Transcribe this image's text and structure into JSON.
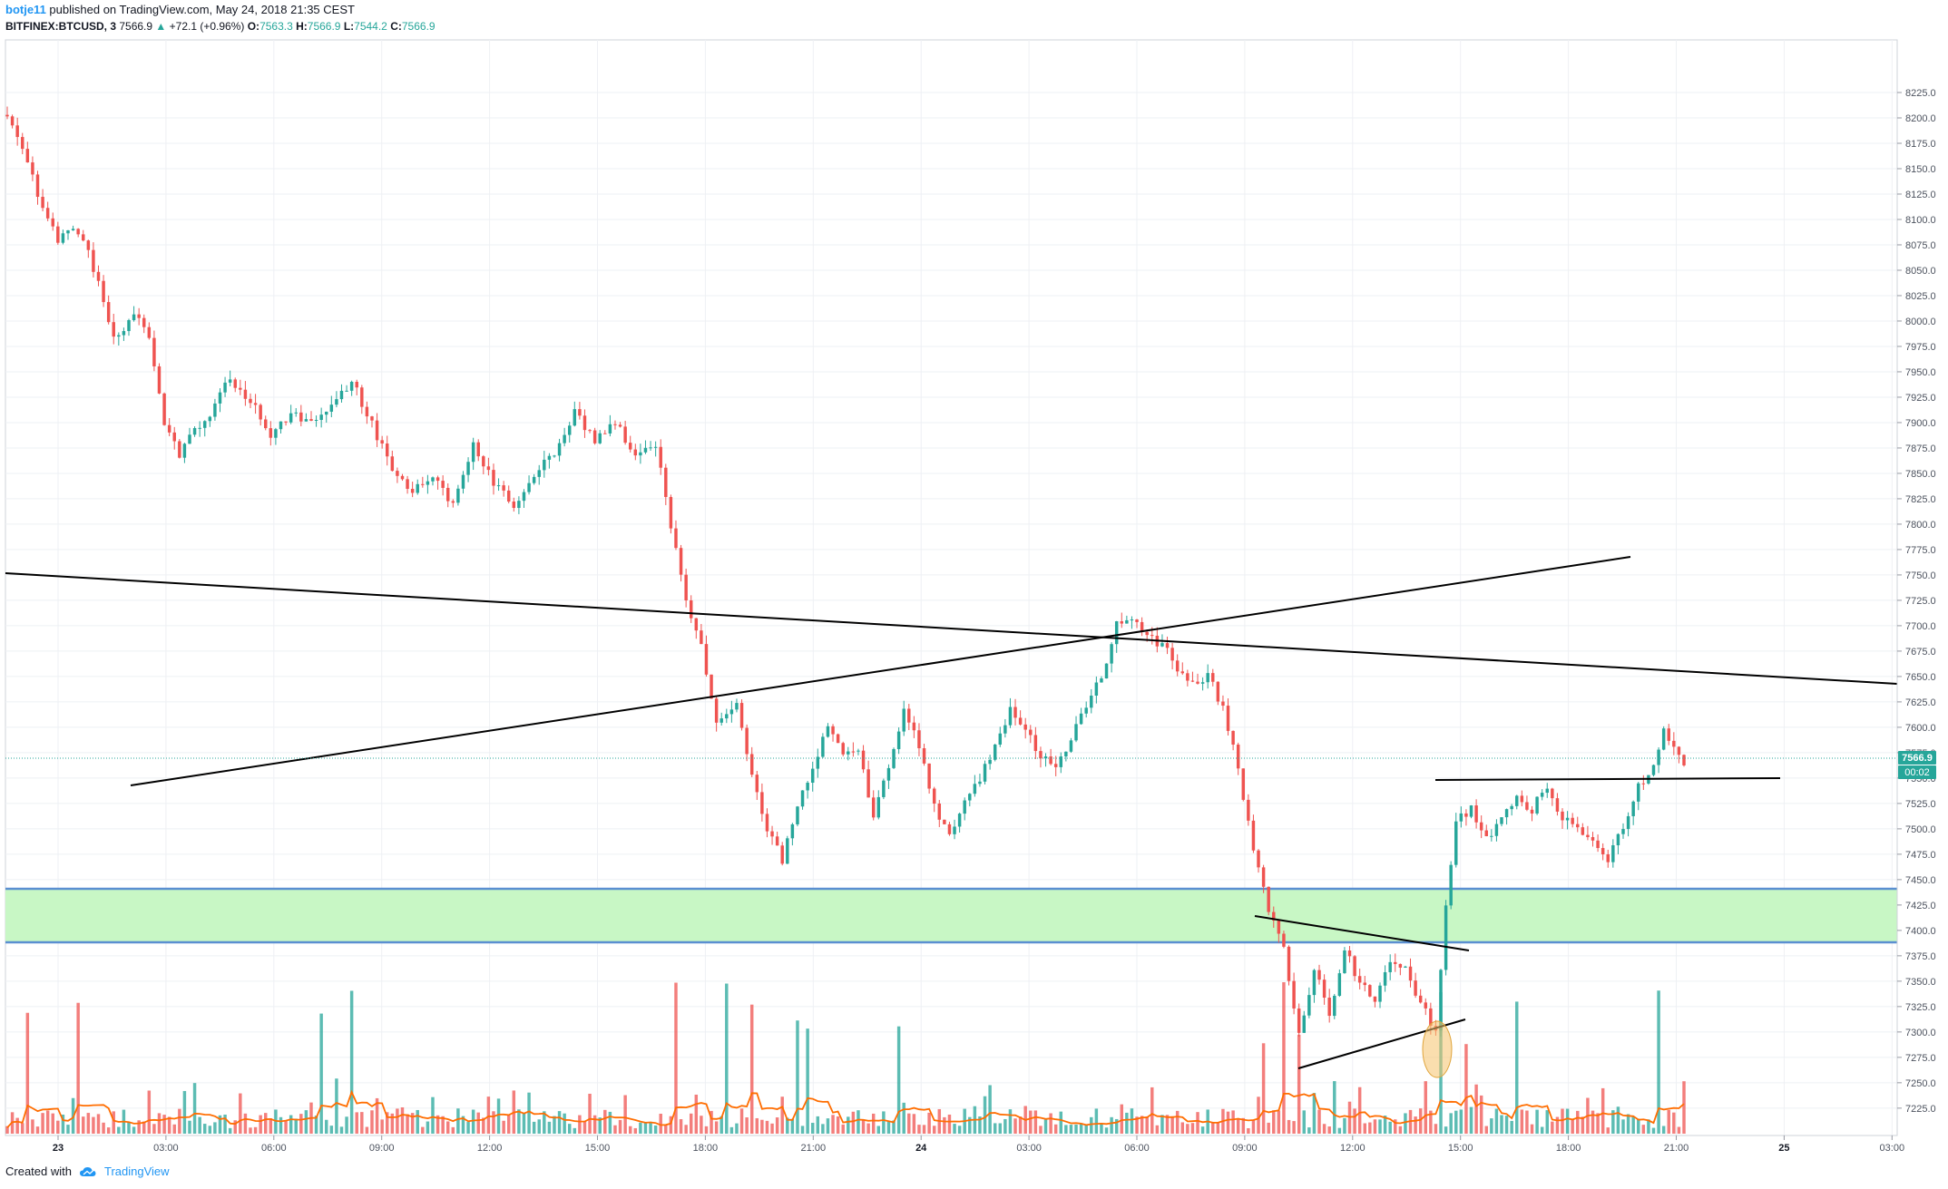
{
  "header": {
    "author": "botje11",
    "published_text": "published on TradingView.com, May 24, 2018 21:35 CEST",
    "symbol": "BITFINEX:BTCUSD, 3",
    "last": "7566.9",
    "change": "+72.1 (+0.96%)",
    "open_label": "O:",
    "open": "7563.3",
    "high_label": "H:",
    "high": "7566.9",
    "low_label": "L:",
    "low": "7544.2",
    "close_label": "C:",
    "close": "7566.9"
  },
  "footer": {
    "created_with": "Created with",
    "brand": "TradingView"
  },
  "price_axis": {
    "ticks": [
      "8225.0",
      "8200.0",
      "8175.0",
      "8150.0",
      "8125.0",
      "8100.0",
      "8075.0",
      "8050.0",
      "8025.0",
      "8000.0",
      "7975.0",
      "7950.0",
      "7925.0",
      "7900.0",
      "7875.0",
      "7850.0",
      "7825.0",
      "7800.0",
      "7775.0",
      "7750.0",
      "7725.0",
      "7700.0",
      "7675.0",
      "7650.0",
      "7625.0",
      "7600.0",
      "7575.0",
      "7550.0",
      "7525.0",
      "7500.0",
      "7475.0",
      "7450.0",
      "7425.0",
      "7400.0",
      "7375.0",
      "7350.0",
      "7325.0",
      "7300.0",
      "7275.0",
      "7250.0",
      "7225.0"
    ],
    "last_price_label": "7566.9",
    "countdown_label": "00:02"
  },
  "time_axis": {
    "ticks": [
      "23",
      "03:00",
      "06:00",
      "09:00",
      "12:00",
      "15:00",
      "18:00",
      "21:00",
      "24",
      "03:00",
      "06:00",
      "09:00",
      "12:00",
      "15:00",
      "18:00",
      "21:00",
      "25",
      "03:00"
    ],
    "bold_ticks": [
      "23",
      "24",
      "25"
    ]
  },
  "colors": {
    "up": "#26a69a",
    "down": "#ef5350",
    "zone_fill": "#c8f7c5",
    "zone_border": "#5b8fd1",
    "volume_ma": "#ff6d00",
    "trendline": "#000000",
    "highlight": "#f5c26b"
  },
  "chart_data": {
    "type": "candlestick",
    "price_range": [
      7207,
      8250
    ],
    "price_path_keypoints": [
      [
        0,
        8200
      ],
      [
        4,
        8160
      ],
      [
        7,
        8110
      ],
      [
        10,
        8080
      ],
      [
        14,
        8090
      ],
      [
        18,
        8040
      ],
      [
        21,
        7980
      ],
      [
        25,
        8010
      ],
      [
        28,
        7980
      ],
      [
        31,
        7900
      ],
      [
        34,
        7870
      ],
      [
        37,
        7890
      ],
      [
        40,
        7910
      ],
      [
        44,
        7945
      ],
      [
        48,
        7920
      ],
      [
        52,
        7890
      ],
      [
        56,
        7910
      ],
      [
        60,
        7900
      ],
      [
        64,
        7920
      ],
      [
        68,
        7940
      ],
      [
        72,
        7900
      ],
      [
        76,
        7850
      ],
      [
        80,
        7830
      ],
      [
        84,
        7850
      ],
      [
        88,
        7820
      ],
      [
        92,
        7880
      ],
      [
        96,
        7840
      ],
      [
        100,
        7820
      ],
      [
        104,
        7850
      ],
      [
        108,
        7870
      ],
      [
        112,
        7910
      ],
      [
        116,
        7880
      ],
      [
        120,
        7900
      ],
      [
        124,
        7870
      ],
      [
        128,
        7880
      ],
      [
        131,
        7800
      ],
      [
        134,
        7720
      ],
      [
        137,
        7680
      ],
      [
        140,
        7600
      ],
      [
        144,
        7620
      ],
      [
        147,
        7550
      ],
      [
        150,
        7500
      ],
      [
        153,
        7470
      ],
      [
        156,
        7520
      ],
      [
        159,
        7560
      ],
      [
        162,
        7600
      ],
      [
        165,
        7570
      ],
      [
        168,
        7580
      ],
      [
        171,
        7510
      ],
      [
        174,
        7560
      ],
      [
        177,
        7620
      ],
      [
        180,
        7580
      ],
      [
        183,
        7520
      ],
      [
        186,
        7490
      ],
      [
        189,
        7530
      ],
      [
        192,
        7550
      ],
      [
        195,
        7580
      ],
      [
        198,
        7620
      ],
      [
        201,
        7600
      ],
      [
        204,
        7570
      ],
      [
        207,
        7560
      ],
      [
        210,
        7590
      ],
      [
        213,
        7620
      ],
      [
        216,
        7650
      ],
      [
        219,
        7700
      ],
      [
        222,
        7710
      ],
      [
        225,
        7690
      ],
      [
        228,
        7680
      ],
      [
        231,
        7660
      ],
      [
        234,
        7640
      ],
      [
        237,
        7650
      ],
      [
        240,
        7620
      ],
      [
        243,
        7560
      ],
      [
        246,
        7480
      ],
      [
        249,
        7420
      ],
      [
        252,
        7380
      ],
      [
        255,
        7300
      ],
      [
        258,
        7360
      ],
      [
        261,
        7320
      ],
      [
        264,
        7380
      ],
      [
        267,
        7350
      ],
      [
        270,
        7330
      ],
      [
        273,
        7370
      ],
      [
        276,
        7360
      ],
      [
        279,
        7330
      ],
      [
        282,
        7300
      ],
      [
        284,
        7420
      ],
      [
        286,
        7510
      ],
      [
        289,
        7520
      ],
      [
        292,
        7490
      ],
      [
        295,
        7510
      ],
      [
        298,
        7530
      ],
      [
        301,
        7520
      ],
      [
        304,
        7540
      ],
      [
        307,
        7510
      ],
      [
        310,
        7500
      ],
      [
        313,
        7490
      ],
      [
        316,
        7470
      ],
      [
        319,
        7500
      ],
      [
        322,
        7540
      ],
      [
        325,
        7560
      ],
      [
        327,
        7600
      ],
      [
        329,
        7580
      ],
      [
        331,
        7567
      ]
    ],
    "volume_spike_indices": [
      4,
      14,
      62,
      68,
      132,
      142,
      147,
      156,
      158,
      176,
      248,
      252,
      255,
      283,
      288,
      298,
      326
    ]
  }
}
